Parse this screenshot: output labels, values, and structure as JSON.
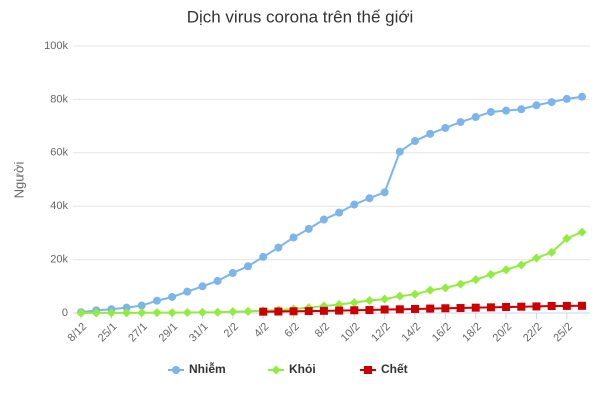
{
  "chart_data": {
    "type": "line",
    "title": "Dịch virus corona trên thế giới",
    "y_label": "Người",
    "categories": [
      "8/12",
      null,
      "25/1",
      null,
      "27/1",
      null,
      "29/1",
      null,
      "31/1",
      null,
      "2/2",
      null,
      "4/2",
      null,
      "6/2",
      null,
      "8/2",
      null,
      "10/2",
      null,
      "12/2",
      null,
      "14/2",
      null,
      "16/2",
      null,
      "18/2",
      null,
      "20/2",
      null,
      "22/2",
      null,
      "25/2",
      null
    ],
    "series": [
      {
        "name": "Nhiễm",
        "color": "#7cb5ec",
        "marker": "circle",
        "values": [
          300,
          1000,
          1400,
          2000,
          2800,
          4600,
          6000,
          8000,
          10000,
          12000,
          15000,
          17500,
          21000,
          24500,
          28300,
          31500,
          35000,
          37600,
          40600,
          43000,
          45200,
          60400,
          64400,
          67100,
          69300,
          71500,
          73400,
          75300,
          75800,
          76300,
          77800,
          79000,
          80200,
          81000
        ]
      },
      {
        "name": "Khỏi",
        "color": "#90ed3d",
        "marker": "diamond",
        "values": [
          0,
          30,
          50,
          60,
          100,
          130,
          130,
          200,
          250,
          300,
          500,
          600,
          900,
          1100,
          1500,
          2000,
          2600,
          3200,
          3900,
          4700,
          5200,
          6300,
          7000,
          8500,
          9400,
          10800,
          12500,
          14400,
          16200,
          18000,
          20600,
          22700,
          27900,
          30300
        ]
      },
      {
        "name": "Chết",
        "color": "#cc0000",
        "marker": "square",
        "values": [
          null,
          null,
          null,
          null,
          null,
          null,
          null,
          null,
          null,
          null,
          null,
          null,
          490,
          560,
          640,
          720,
          810,
          910,
          1020,
          1110,
          1300,
          1380,
          1520,
          1660,
          1770,
          1860,
          2000,
          2120,
          2240,
          2360,
          2460,
          2620,
          2660,
          2700
        ]
      }
    ],
    "ylim": [
      0,
      100000
    ],
    "yticks": [
      0,
      {
        "value": 20000,
        "label": "20k"
      },
      {
        "value": 40000,
        "label": "40k"
      },
      {
        "value": 60000,
        "label": "60k"
      },
      {
        "value": 80000,
        "label": "80k"
      },
      {
        "value": 100000,
        "label": "100k"
      }
    ],
    "grid": true,
    "legend": "bottom"
  }
}
